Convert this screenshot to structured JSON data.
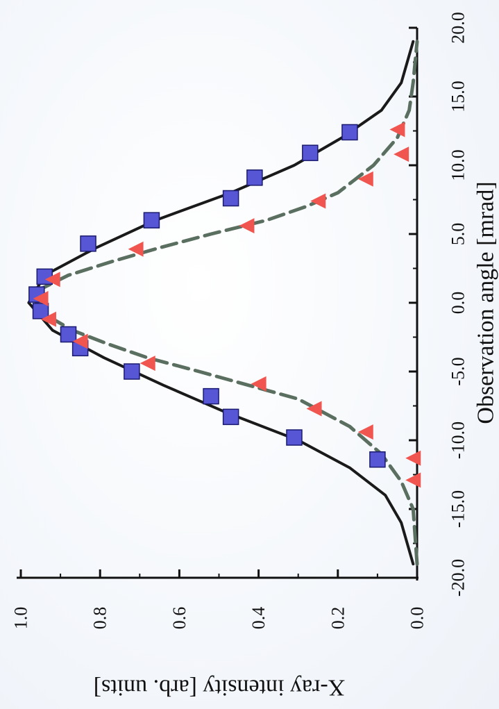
{
  "chart_data": {
    "type": "scatter",
    "orientation": "rotated-90-clockwise",
    "xlabel": "Observation angle [mrad]",
    "ylabel": "X-ray intensity [arb. units]",
    "xlim": [
      -20.0,
      20.0
    ],
    "ylim": [
      0.0,
      1.0
    ],
    "x_ticks": [
      -20.0,
      -15.0,
      -10.0,
      -5.0,
      0.0,
      5.0,
      10.0,
      15.0,
      20.0
    ],
    "x_tick_labels": [
      "-20.0",
      "-15.0",
      "-10.0",
      "-5.0",
      "0.0",
      "5.0",
      "10.0",
      "15.0",
      "20.0"
    ],
    "y_ticks": [
      0.0,
      0.2,
      0.4,
      0.6,
      0.8,
      1.0
    ],
    "y_tick_labels": [
      "0.0",
      "0.2",
      "0.4",
      "0.6",
      "0.8",
      "1.0"
    ],
    "grid": false,
    "legend": "none",
    "series": [
      {
        "kind": "markers",
        "marker": "square",
        "color": "#5757d6",
        "edge": "#1a1a70",
        "points": [
          [
            -11.4,
            0.1
          ],
          [
            -9.8,
            0.31
          ],
          [
            -8.3,
            0.47
          ],
          [
            -6.8,
            0.52
          ],
          [
            -5.0,
            0.72
          ],
          [
            -3.3,
            0.85
          ],
          [
            -2.3,
            0.88
          ],
          [
            -0.6,
            0.95
          ],
          [
            0.6,
            0.96
          ],
          [
            1.9,
            0.94
          ],
          [
            4.3,
            0.83
          ],
          [
            6.0,
            0.67
          ],
          [
            7.6,
            0.47
          ],
          [
            9.1,
            0.41
          ],
          [
            10.9,
            0.27
          ],
          [
            12.4,
            0.17
          ]
        ]
      },
      {
        "kind": "markers",
        "marker": "triangle",
        "color": "#f1554f",
        "points": [
          [
            -12.9,
            0.01
          ],
          [
            -11.3,
            0.01
          ],
          [
            -9.4,
            0.13
          ],
          [
            -7.7,
            0.26
          ],
          [
            -5.9,
            0.4
          ],
          [
            -4.4,
            0.68
          ],
          [
            -2.8,
            0.85
          ],
          [
            -1.2,
            0.93
          ],
          [
            0.3,
            0.95
          ],
          [
            1.7,
            0.92
          ],
          [
            3.9,
            0.71
          ],
          [
            5.6,
            0.43
          ],
          [
            7.4,
            0.25
          ],
          [
            9.0,
            0.13
          ],
          [
            10.8,
            0.04
          ],
          [
            12.6,
            0.05
          ]
        ]
      },
      {
        "kind": "line",
        "style": "solid",
        "color": "#1a1a1a",
        "points": [
          [
            -19.0,
            0.01
          ],
          [
            -16.0,
            0.04
          ],
          [
            -14.0,
            0.08
          ],
          [
            -12.0,
            0.17
          ],
          [
            -10.0,
            0.3
          ],
          [
            -8.0,
            0.48
          ],
          [
            -6.0,
            0.64
          ],
          [
            -4.0,
            0.79
          ],
          [
            -2.0,
            0.92
          ],
          [
            0.0,
            0.98
          ],
          [
            2.0,
            0.94
          ],
          [
            4.0,
            0.81
          ],
          [
            6.0,
            0.66
          ],
          [
            8.0,
            0.47
          ],
          [
            10.0,
            0.31
          ],
          [
            12.0,
            0.19
          ],
          [
            14.0,
            0.09
          ],
          [
            16.0,
            0.04
          ],
          [
            19.0,
            0.01
          ]
        ]
      },
      {
        "kind": "line",
        "style": "dashed",
        "color": "#5a6f60",
        "points": [
          [
            -19.0,
            0.0
          ],
          [
            -15.0,
            0.01
          ],
          [
            -13.0,
            0.04
          ],
          [
            -11.0,
            0.09
          ],
          [
            -9.0,
            0.17
          ],
          [
            -7.0,
            0.3
          ],
          [
            -5.0,
            0.55
          ],
          [
            -4.0,
            0.68
          ],
          [
            -3.0,
            0.78
          ],
          [
            -2.0,
            0.87
          ],
          [
            -1.0,
            0.93
          ],
          [
            0.0,
            0.96
          ],
          [
            1.0,
            0.95
          ],
          [
            2.0,
            0.88
          ],
          [
            3.0,
            0.77
          ],
          [
            4.0,
            0.65
          ],
          [
            5.0,
            0.52
          ],
          [
            6.0,
            0.38
          ],
          [
            7.0,
            0.28
          ],
          [
            8.0,
            0.2
          ],
          [
            10.0,
            0.11
          ],
          [
            12.0,
            0.05
          ],
          [
            14.0,
            0.02
          ],
          [
            16.0,
            0.01
          ],
          [
            19.0,
            0.0
          ]
        ]
      }
    ]
  }
}
